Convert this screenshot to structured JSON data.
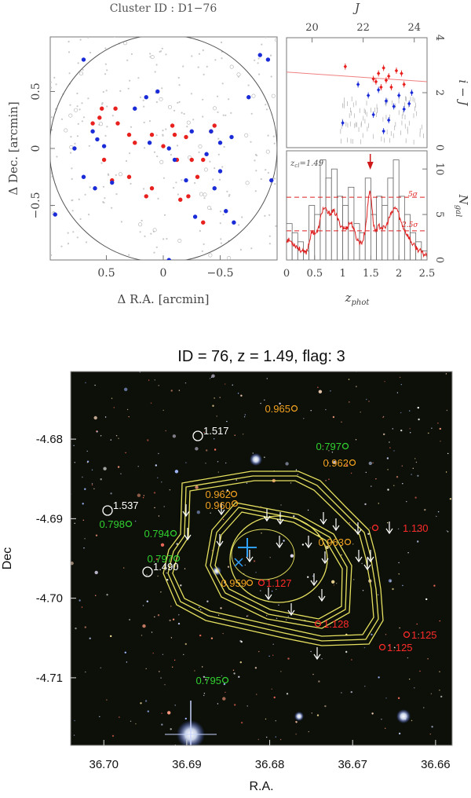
{
  "top": {
    "title": "Cluster ID : D1−76",
    "sky": {
      "xlabel": "Δ R.A. [arcmin]",
      "ylabel": "Δ Dec. [arcmin]",
      "xticks": [
        "0.5",
        "0",
        "−0.5"
      ],
      "yticks": [
        "0.5",
        "0",
        "−0.5"
      ]
    },
    "cmd": {
      "xlabel": "J",
      "ylabel": "i − J",
      "xticks": [
        "20",
        "22",
        "24"
      ],
      "yticks": [
        "0",
        "2",
        "4"
      ]
    },
    "hist": {
      "xlabel": "z",
      "xlabel_sub": "phot",
      "ylabel": "N",
      "ylabel_sub": "gal",
      "zcl_label": "z",
      "zcl_sub": "cl",
      "zcl_value": "=1.49",
      "sig5": "5σ",
      "sig25": "2.5σ",
      "xticks": [
        "0",
        "0.5",
        "1",
        "1.5",
        "2",
        "2.5"
      ],
      "yticks": [
        "0",
        "5",
        "10"
      ]
    }
  },
  "image_panel": {
    "title": "ID = 76, z = 1.49, flag: 3",
    "xlabel": "R.A.",
    "ylabel": "Dec",
    "xticks": [
      "36.70",
      "36.69",
      "36.68",
      "36.67",
      "36.66"
    ],
    "yticks": [
      "-4.68",
      "-4.69",
      "-4.70",
      "-4.71"
    ],
    "labels_orange": [
      "0.965",
      "0.962",
      "0.962",
      "0.960",
      "0.963",
      "0.959"
    ],
    "labels_green": [
      "0.797",
      "0.798",
      "0.794",
      "0.797",
      "0.795"
    ],
    "labels_white": [
      "1.517",
      "1.537",
      "1.490"
    ],
    "labels_red": [
      "1.130",
      "1.127",
      "1.128",
      "1.125",
      "1.125"
    ]
  },
  "colors": {
    "red_member": "#e8201e",
    "blue_member": "#1a2bd8",
    "orange_label": "#f0a020",
    "green_label": "#30d030",
    "red_label": "#ff2a2a",
    "contour": "#e6e060",
    "arrow": "#ffffff",
    "cross": "#30a0ff"
  },
  "chart_data": [
    {
      "type": "scatter",
      "title": "",
      "xlabel": "Δ R.A. [arcmin]",
      "ylabel": "Δ Dec. [arcmin]",
      "xlim": [
        1.0,
        -1.0
      ],
      "ylim": [
        -1.0,
        1.0
      ],
      "aperture_radius": 1.0,
      "series": [
        {
          "color": "#e8201e",
          "x": [
            0.62,
            0.56,
            0.54,
            0.4,
            0.42,
            0.3,
            0.25,
            0.1,
            -0.08,
            -0.1,
            -0.2,
            -0.45,
            -0.42,
            0.45,
            0.3,
            0.0,
            -0.12,
            -0.35,
            -0.3,
            0.52,
            -0.35,
            -0.25,
            0.1,
            -0.15,
            -0.22,
            0.15
          ],
          "y": [
            0.22,
            0.27,
            0.35,
            0.22,
            0.35,
            0.12,
            0.05,
            0.12,
            0.2,
            0.12,
            0.1,
            0.2,
            0.15,
            -0.28,
            -0.25,
            0.02,
            -0.1,
            -0.1,
            -0.25,
            -0.1,
            -0.65,
            -0.1,
            -0.35,
            -0.45,
            -0.42,
            -0.42
          ]
        },
        {
          "color": "#1a2bd8",
          "x": [
            0.85,
            0.7,
            0.62,
            0.58,
            0.52,
            0.78,
            0.7,
            0.6,
            0.45,
            0.25,
            0.15,
            0.12,
            0.05,
            -0.05,
            -0.1,
            -0.25,
            -0.42,
            -0.5,
            -0.38,
            -0.5,
            -0.6,
            -0.75,
            -0.95,
            -0.55,
            -0.62,
            -0.28,
            -0.45,
            -0.2,
            -0.05,
            0.95,
            -0.85,
            -0.92
          ],
          "y": [
            1.0,
            0.78,
            0.15,
            0.08,
            0.02,
            0.0,
            -0.25,
            -0.35,
            -0.3,
            0.35,
            0.45,
            0.05,
            0.5,
            0.0,
            -0.1,
            0.15,
            0.15,
            0.05,
            -0.05,
            -0.2,
            0.1,
            0.45,
            -0.28,
            -0.55,
            -0.65,
            -0.6,
            -0.35,
            -0.28,
            -0.98,
            -0.58,
            0.82,
            0.78
          ]
        }
      ]
    },
    {
      "type": "scatter",
      "title": "",
      "xlabel": "J",
      "ylabel": "i − J",
      "xlim": [
        19.0,
        24.5
      ],
      "ylim": [
        0,
        4
      ],
      "red_sequence": {
        "x": [
          19.0,
          24.5
        ],
        "y": [
          2.75,
          2.4
        ]
      },
      "series": [
        {
          "color": "#e8201e",
          "x": [
            21.3,
            22.4,
            22.6,
            22.8,
            23.0,
            22.9,
            23.1,
            23.3,
            23.5,
            22.5,
            22.7,
            23.6
          ],
          "y": [
            2.95,
            2.5,
            2.7,
            2.9,
            2.6,
            2.45,
            2.2,
            2.8,
            2.7,
            2.4,
            2.2,
            2.3
          ]
        },
        {
          "color": "#1a2bd8",
          "x": [
            21.8,
            22.2,
            22.6,
            22.9,
            23.2,
            23.4,
            23.6,
            23.8,
            22.4,
            23.0,
            21.2,
            22.8,
            23.9
          ],
          "y": [
            2.3,
            1.9,
            2.1,
            1.7,
            1.5,
            1.9,
            1.4,
            1.6,
            1.2,
            1.0,
            0.9,
            0.6,
            2.0
          ]
        }
      ]
    },
    {
      "type": "bar",
      "title": "",
      "xlabel": "z phot",
      "ylabel": "N gal",
      "xlim": [
        0,
        2.5
      ],
      "ylim": [
        0,
        12
      ],
      "bin_width": 0.1,
      "values": [
        4,
        3,
        2,
        1,
        6,
        5,
        11,
        9,
        10,
        7,
        6,
        8,
        4,
        3,
        9,
        5,
        7,
        6,
        9,
        11,
        7,
        5,
        3,
        2,
        1
      ],
      "cluster_redshift": 1.49,
      "threshold_5sigma": 6.9,
      "threshold_2p5sigma": 3.2
    }
  ]
}
